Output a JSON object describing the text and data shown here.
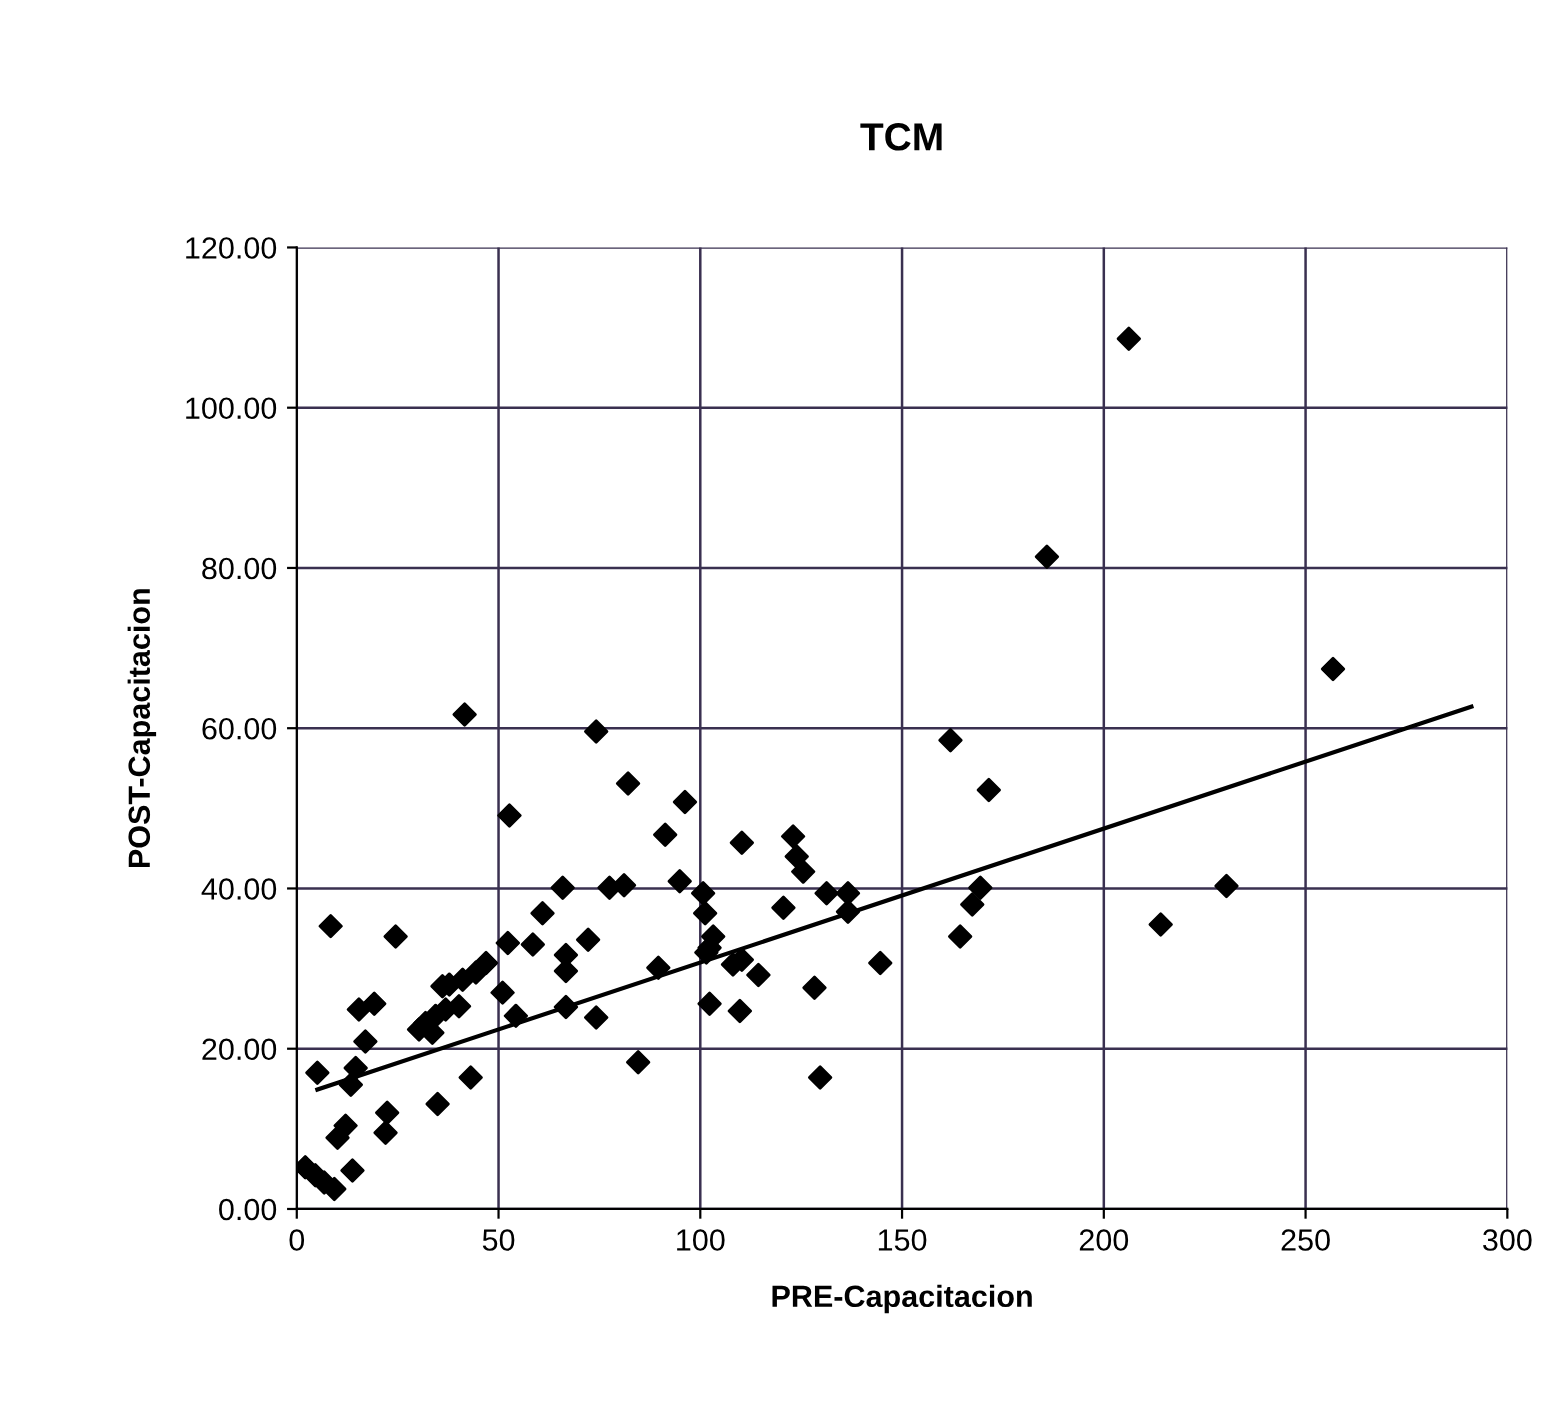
{
  "chart_data": {
    "type": "scatter",
    "title": "TCM",
    "xlabel": "PRE-Capacitacion",
    "ylabel": "POST-Capacitacion",
    "xlim": [
      0,
      300
    ],
    "xticks": [
      0,
      50,
      100,
      150,
      200,
      250,
      300
    ],
    "ylim": [
      0,
      120
    ],
    "yticks": [
      {
        "value": 0,
        "label": "0.00"
      },
      {
        "value": 20,
        "label": "20.00"
      },
      {
        "value": 40,
        "label": "40.00"
      },
      {
        "value": 60,
        "label": "60.00"
      },
      {
        "value": 80,
        "label": "80.00"
      },
      {
        "value": 100,
        "label": "100.00"
      },
      {
        "value": 120,
        "label": "120.00"
      }
    ],
    "grid": true,
    "series": [
      {
        "marker": "diamond",
        "color": "#000000",
        "x": [
          41.6,
          74.2,
          82.1,
          52.7,
          91.3,
          65.9,
          77.5,
          81.1,
          60.9,
          8.4,
          24.5,
          52.3,
          58.5,
          72.2,
          66.7,
          66.7,
          46.9,
          44.4,
          41.1,
          37.8,
          36.1,
          51.0,
          40.2,
          36.9,
          34.4,
          31.9,
          30.3,
          33.6,
          54.3,
          66.7,
          74.2,
          15.4,
          19.2,
          17.0,
          5.1,
          13.4,
          14.6,
          84.6,
          43.1,
          34.9,
          22.4,
          22.0,
          12.1,
          10.1,
          2.1,
          4.6,
          6.8,
          9.3,
          13.8,
          89.6,
          94.9,
          96.2,
          100.7,
          101.2,
          103.2,
          102.3,
          101.5,
          102.3,
          110.3,
          108.1,
          110.3,
          114.4,
          109.8,
          123.0,
          123.9,
          125.5,
          120.6,
          131.3,
          136.6,
          136.6,
          128.3,
          129.7,
          144.6,
          162.0,
          171.5,
          164.4,
          167.4,
          169.4,
          214.1,
          206.2,
          185.9,
          256.8,
          230.4
        ],
        "values": [
          61.7,
          59.6,
          53.1,
          49.1,
          46.7,
          40.1,
          40.1,
          40.4,
          36.9,
          35.3,
          34.0,
          33.2,
          33.0,
          33.6,
          31.7,
          29.7,
          30.7,
          29.5,
          28.6,
          28.0,
          27.8,
          27.0,
          25.3,
          24.9,
          24.1,
          23.2,
          22.4,
          22.0,
          24.1,
          25.2,
          23.9,
          24.9,
          25.6,
          20.9,
          17.0,
          15.5,
          17.6,
          18.3,
          16.4,
          13.1,
          12.0,
          9.5,
          10.4,
          8.9,
          5.2,
          4.2,
          3.3,
          2.5,
          4.8,
          30.1,
          40.9,
          50.8,
          39.4,
          36.9,
          34.0,
          32.6,
          32.0,
          25.6,
          45.7,
          30.5,
          31.1,
          29.2,
          24.7,
          46.5,
          44.0,
          42.1,
          37.6,
          39.4,
          39.4,
          37.1,
          27.6,
          16.4,
          30.7,
          58.5,
          52.3,
          34.0,
          38.0,
          40.1,
          35.5,
          108.6,
          81.4,
          67.4,
          40.3
        ]
      },
      {
        "type": "line",
        "marker": "none",
        "color": "#000000",
        "x": [
          5.1,
          291.1
        ],
        "values": [
          14.9,
          62.7
        ]
      }
    ]
  }
}
